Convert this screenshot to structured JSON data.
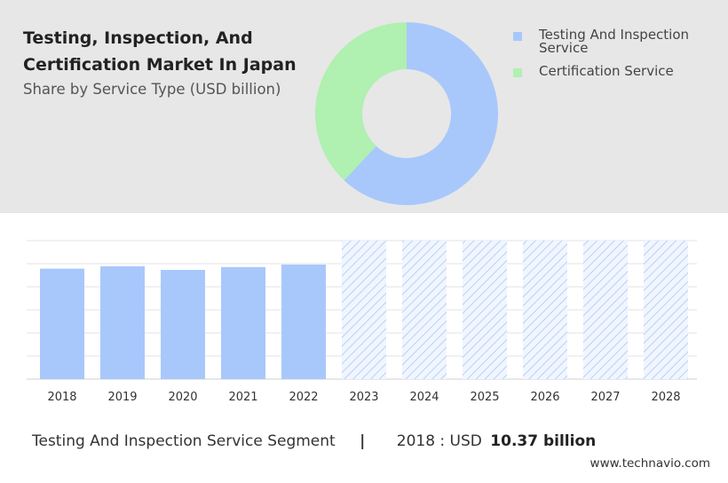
{
  "header": {
    "title": "Testing, Inspection, And Certification Market In Japan",
    "subtitle": "Share by Service Type (USD billion)"
  },
  "chart_data": [
    {
      "type": "pie",
      "donut": true,
      "series": [
        {
          "name": "Testing And Inspection Service",
          "value": 62,
          "color": "#a8c8fb"
        },
        {
          "name": "Certification Service",
          "value": 38,
          "color": "#b0f0b0"
        }
      ],
      "legend_position": "top-right"
    },
    {
      "type": "bar",
      "categories": [
        "2018",
        "2019",
        "2020",
        "2021",
        "2022",
        "2023",
        "2024",
        "2025",
        "2026",
        "2027",
        "2028"
      ],
      "values": [
        10.37,
        10.6,
        10.25,
        10.52,
        10.75,
        null,
        null,
        null,
        null,
        null,
        null
      ],
      "forecast": [
        false,
        false,
        false,
        false,
        false,
        true,
        true,
        true,
        true,
        true,
        true
      ],
      "ylim": [
        0,
        13
      ],
      "grid": true,
      "bar_color": "#a8c8fb"
    }
  ],
  "footer": {
    "segment": "Testing And Inspection Service Segment",
    "separator": "|",
    "value_prefix": "2018 : USD",
    "value": "10.37 billion",
    "site": "www.technavio.com"
  }
}
